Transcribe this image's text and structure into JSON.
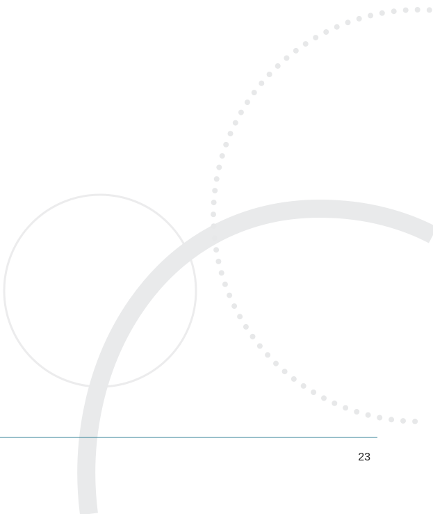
{
  "footer": {
    "page_number": "23"
  },
  "colors": {
    "rule": "#2f7f95",
    "decor": "#e9eaeb"
  }
}
